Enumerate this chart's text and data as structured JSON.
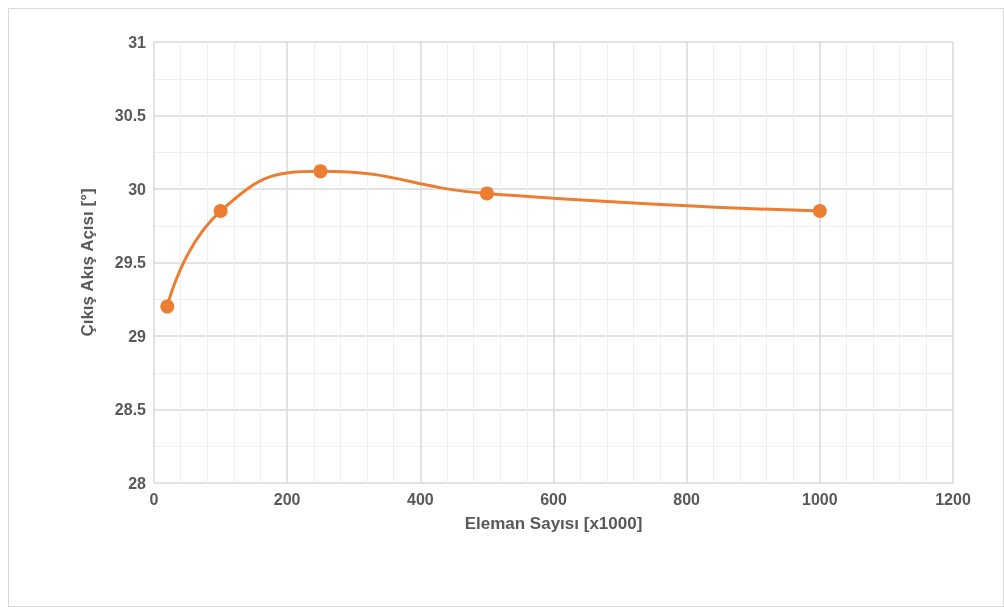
{
  "chart_data": {
    "type": "line",
    "xlabel": "Eleman Sayısı [x1000]",
    "ylabel": "Çıkış Akış Açısı [°]",
    "x": [
      20,
      100,
      250,
      500,
      1000
    ],
    "series": [
      {
        "color": "#ed7d31",
        "values": [
          29.2,
          29.85,
          30.12,
          29.97,
          29.85
        ]
      }
    ],
    "xlim": [
      0,
      1200
    ],
    "xticks": [
      0,
      200,
      400,
      600,
      800,
      1000,
      1200
    ],
    "ylim": [
      28,
      31
    ],
    "yticks": [
      28,
      28.5,
      29,
      29.5,
      30,
      30.5,
      31
    ],
    "grid": true,
    "marker": "circle",
    "line_style": "solid"
  }
}
